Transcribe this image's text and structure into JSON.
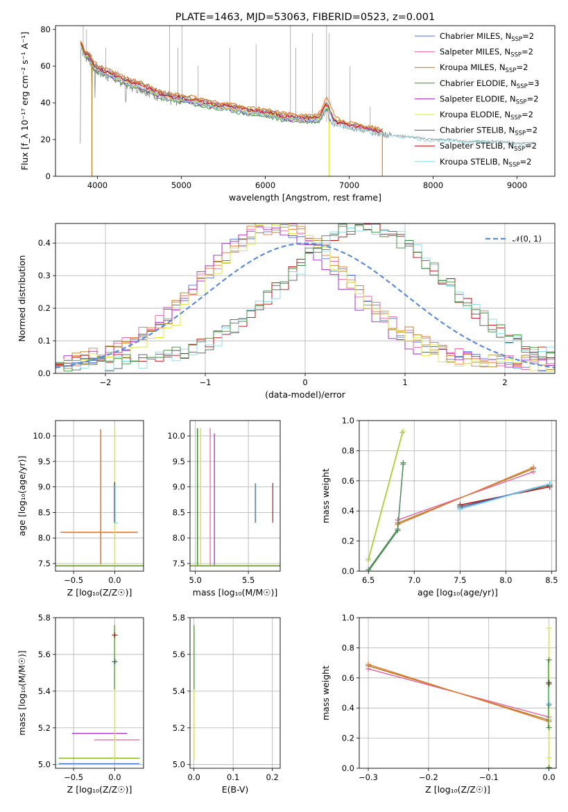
{
  "figure": {
    "title": "PLATE=1463, MJD=53063, FIBERID=0523, z=0.001"
  },
  "colors": {
    "Chabrier MILES": "#4c72d0",
    "Salpeter MILES": "#e8609d",
    "Kroupa MILES": "#b07a18",
    "Chabrier ELODIE": "#3a8a3a",
    "Salpeter ELODIE": "#a020c0",
    "Kroupa ELODIE": "#d8e830",
    "Chabrier STELIB": "#555555",
    "Salpeter STELIB": "#c00000",
    "Kroupa STELIB": "#80d8e8",
    "orange": "#e07a30",
    "data_grey": "#808080",
    "normal_curve": "#5b8bd8"
  },
  "chart_data": [
    {
      "id": "spectrum",
      "type": "line",
      "title": "PLATE=1463, MJD=53063, FIBERID=0523, z=0.001",
      "xlabel": "wavelength [Angstrom, rest frame]",
      "ylabel": "Flux [f_λ 10⁻¹⁷ erg cm⁻² s⁻¹ A⁻¹]",
      "xlim": [
        3500,
        9450
      ],
      "ylim": [
        0,
        82
      ],
      "xticks": [
        4000,
        5000,
        6000,
        7000,
        8000,
        9000
      ],
      "yticks": [
        0,
        20,
        40,
        60,
        80
      ],
      "grid": false,
      "legend_position": "top-right",
      "legend": [
        {
          "label": "Chabrier MILES, N",
          "sub": "SSP",
          "suffix": "=2"
        },
        {
          "label": "Salpeter MILES, N",
          "sub": "SSP",
          "suffix": "=2"
        },
        {
          "label": "Kroupa MILES, N",
          "sub": "SSP",
          "suffix": "=2"
        },
        {
          "label": "Chabrier ELODIE, N",
          "sub": "SSP",
          "suffix": "=3"
        },
        {
          "label": "Salpeter ELODIE, N",
          "sub": "SSP",
          "suffix": "=2"
        },
        {
          "label": "Kroupa ELODIE, N",
          "sub": "SSP",
          "suffix": "=2"
        },
        {
          "label": "Chabrier STELIB, N",
          "sub": "SSP",
          "suffix": "=2"
        },
        {
          "label": "Salpeter STELIB, N",
          "sub": "SSP",
          "suffix": "=2"
        },
        {
          "label": "Kroupa STELIB, N",
          "sub": "SSP",
          "suffix": "=2"
        }
      ],
      "continuum": [
        [
          3800,
          72
        ],
        [
          3850,
          66
        ],
        [
          3900,
          65
        ],
        [
          3950,
          60
        ],
        [
          4000,
          58
        ],
        [
          4100,
          56
        ],
        [
          4200,
          54
        ],
        [
          4300,
          52
        ],
        [
          4400,
          50
        ],
        [
          4500,
          49
        ],
        [
          4600,
          47
        ],
        [
          4700,
          45
        ],
        [
          4800,
          43
        ],
        [
          4900,
          42
        ],
        [
          5000,
          42
        ],
        [
          5200,
          40
        ],
        [
          5400,
          38
        ],
        [
          5600,
          37
        ],
        [
          5800,
          35
        ],
        [
          6000,
          34
        ],
        [
          6200,
          32
        ],
        [
          6400,
          31
        ],
        [
          6600,
          31
        ],
        [
          6800,
          29
        ],
        [
          7000,
          27
        ],
        [
          7200,
          25
        ],
        [
          7400,
          23
        ],
        [
          7600,
          22
        ],
        [
          7800,
          21
        ],
        [
          8000,
          20
        ],
        [
          8200,
          20
        ],
        [
          8400,
          19
        ],
        [
          8600,
          19
        ],
        [
          8800,
          19
        ],
        [
          9000,
          18
        ],
        [
          9200,
          18
        ]
      ]
    },
    {
      "id": "residuals",
      "type": "line",
      "xlabel": "(data-model)/error",
      "ylabel": "Normed distribution",
      "xlim": [
        -2.5,
        2.5
      ],
      "ylim": [
        0,
        0.46
      ],
      "xticks": [
        -2,
        -1,
        0,
        1,
        2
      ],
      "yticks": [
        0.0,
        0.1,
        0.2,
        0.3,
        0.4
      ],
      "grid": true,
      "legend_position": "top-right",
      "legend": [
        {
          "label": "𝒩(0, 1)"
        }
      ]
    },
    {
      "id": "age-vs-Z",
      "type": "scatter",
      "xlabel": "Z [log₁₀(Z/Z☉)]",
      "ylabel": "age  [log₁₀(age/yr)]",
      "xlim": [
        -0.72,
        0.35
      ],
      "ylim": [
        7.35,
        10.3
      ],
      "xticks": [
        -0.5,
        0.0
      ],
      "yticks": [
        7.5,
        8.0,
        8.5,
        9.0,
        9.5,
        10.0
      ],
      "grid": true
    },
    {
      "id": "age-vs-mass",
      "type": "scatter",
      "xlabel": "mass [log₁₀(M/M☉)]",
      "xlim": [
        4.95,
        5.8
      ],
      "ylim": [
        7.35,
        10.3
      ],
      "xticks": [
        5.0,
        5.5
      ],
      "yticks": [
        7.5,
        8.0,
        8.5,
        9.0,
        9.5,
        10.0
      ],
      "grid": true
    },
    {
      "id": "massweight-vs-age",
      "type": "line",
      "xlabel": "age  [log₁₀(age/yr)]",
      "ylabel": "mass weight",
      "xlim": [
        6.4,
        8.55
      ],
      "ylim": [
        0,
        1
      ],
      "xticks": [
        6.5,
        7.0,
        7.5,
        8.0,
        8.5
      ],
      "yticks": [
        0.0,
        0.2,
        0.4,
        0.6,
        0.8,
        1.0
      ],
      "grid": true,
      "series": [
        {
          "color": "#b07a18",
          "points": [
            [
              6.82,
              0.32
            ],
            [
              8.3,
              0.68
            ]
          ]
        },
        {
          "color": "#e8609d",
          "points": [
            [
              6.82,
              0.34
            ],
            [
              8.3,
              0.66
            ]
          ]
        },
        {
          "color": "#e07a30",
          "points": [
            [
              6.82,
              0.31
            ],
            [
              8.3,
              0.69
            ]
          ]
        },
        {
          "color": "#c00000",
          "points": [
            [
              7.5,
              0.44
            ],
            [
              8.48,
              0.56
            ]
          ]
        },
        {
          "color": "#555555",
          "points": [
            [
              7.5,
              0.43
            ],
            [
              8.48,
              0.57
            ]
          ]
        },
        {
          "color": "#4c72d0",
          "points": [
            [
              7.5,
              0.42
            ],
            [
              8.48,
              0.58
            ]
          ]
        },
        {
          "color": "#80d8e8",
          "points": [
            [
              7.5,
              0.41
            ],
            [
              8.48,
              0.58
            ]
          ]
        },
        {
          "color": "#d8e830",
          "points": [
            [
              6.5,
              0.07
            ],
            [
              6.88,
              0.93
            ]
          ]
        },
        {
          "color": "#a4c850",
          "points": [
            [
              6.5,
              0.08
            ],
            [
              6.87,
              0.92
            ]
          ]
        },
        {
          "color": "#3a8a3a",
          "points": [
            [
              6.5,
              0.0
            ],
            [
              6.82,
              0.27
            ],
            [
              6.88,
              0.72
            ]
          ]
        },
        {
          "color": "#5a8a6a",
          "points": [
            [
              6.5,
              0.01
            ],
            [
              6.82,
              0.28
            ],
            [
              6.88,
              0.71
            ]
          ]
        }
      ]
    },
    {
      "id": "mass-vs-Z",
      "type": "scatter",
      "xlabel": "Z [log₁₀(Z/Z☉)]",
      "ylabel": "mass [log₁₀(M/M☉)]",
      "xlim": [
        -0.72,
        0.35
      ],
      "ylim": [
        4.98,
        5.8
      ],
      "xticks": [
        -0.5,
        0.0
      ],
      "yticks": [
        5.0,
        5.2,
        5.4,
        5.6,
        5.8
      ],
      "grid": true
    },
    {
      "id": "mass-vs-ebv",
      "type": "scatter",
      "xlabel": "E(B-V)",
      "xlim": [
        -0.01,
        0.22
      ],
      "ylim": [
        4.98,
        5.8
      ],
      "xticks": [
        0.0,
        0.1,
        0.2
      ],
      "yticks": [
        5.0,
        5.2,
        5.4,
        5.6,
        5.8
      ],
      "grid": true
    },
    {
      "id": "massweight-vs-Z",
      "type": "line",
      "xlabel": "Z [log₁₀(Z/Z☉)]",
      "ylabel": "mass weight",
      "xlim": [
        -0.315,
        0.012
      ],
      "ylim": [
        0,
        1
      ],
      "xticks": [
        -0.3,
        -0.2,
        -0.1,
        0.0
      ],
      "yticks": [
        0.0,
        0.2,
        0.4,
        0.6,
        0.8,
        1.0
      ],
      "grid": true,
      "series": [
        {
          "color": "#e8609d",
          "points": [
            [
              -0.3,
              0.66
            ],
            [
              0.0,
              0.34
            ]
          ]
        },
        {
          "color": "#b07a18",
          "points": [
            [
              -0.3,
              0.68
            ],
            [
              0.0,
              0.32
            ]
          ]
        },
        {
          "color": "#e07a30",
          "points": [
            [
              -0.3,
              0.69
            ],
            [
              0.0,
              0.31
            ]
          ]
        }
      ]
    }
  ]
}
